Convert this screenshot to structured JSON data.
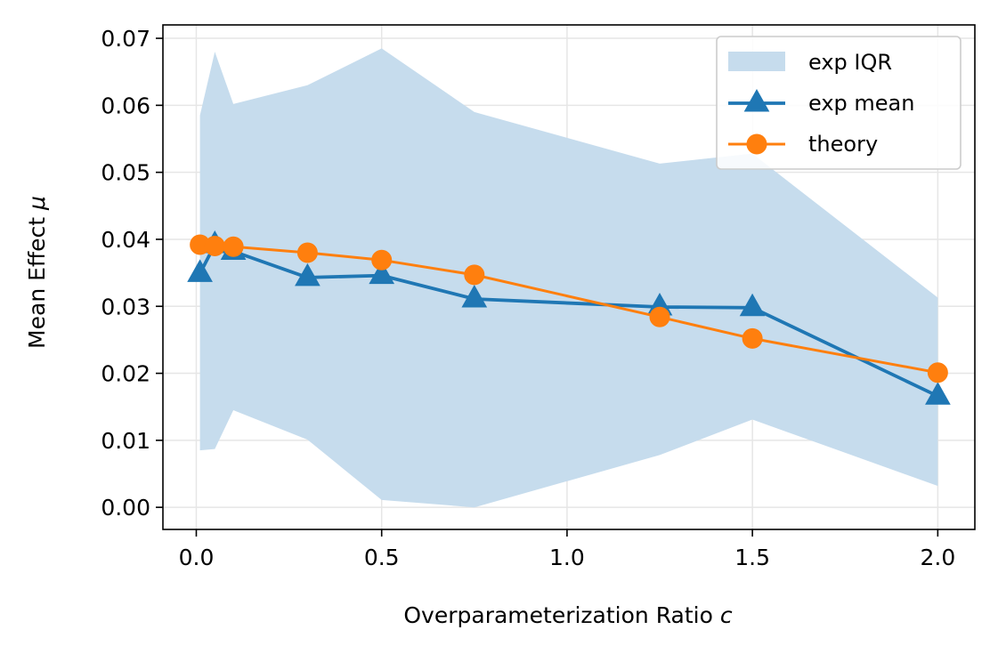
{
  "chart_data": {
    "type": "line",
    "xlabel": "Overparameterization Ratio",
    "xlabel_symbol": "c",
    "ylabel": "Mean Effect",
    "ylabel_symbol": "μ",
    "xlim": [
      -0.09,
      2.1
    ],
    "ylim": [
      -0.0033,
      0.072
    ],
    "x_ticks": [
      0.0,
      0.5,
      1.0,
      1.5,
      2.0
    ],
    "x_tick_labels": [
      "0.0",
      "0.5",
      "1.0",
      "1.5",
      "2.0"
    ],
    "y_ticks": [
      0.0,
      0.01,
      0.02,
      0.03,
      0.04,
      0.05,
      0.06,
      0.07
    ],
    "y_tick_labels": [
      "0.00",
      "0.01",
      "0.02",
      "0.03",
      "0.04",
      "0.05",
      "0.06",
      "0.07"
    ],
    "grid": true,
    "legend_position": "top-right",
    "x": [
      0.01,
      0.05,
      0.1,
      0.3,
      0.5,
      0.75,
      1.25,
      1.5,
      2.0
    ],
    "band": {
      "name": "exp IQR",
      "color": "#c6dced",
      "upper": [
        0.0585,
        0.068,
        0.0602,
        0.063,
        0.0685,
        0.059,
        0.0513,
        0.0528,
        0.0313
      ],
      "lower": [
        0.0085,
        0.0087,
        0.0145,
        0.0101,
        0.0011,
        0.0,
        0.0078,
        0.0131,
        0.0032
      ]
    },
    "series": [
      {
        "name": "exp mean",
        "color": "#1f77b4",
        "marker": "triangle",
        "values": [
          0.0349,
          0.0392,
          0.0382,
          0.0343,
          0.0346,
          0.0311,
          0.0299,
          0.0298,
          0.0166
        ]
      },
      {
        "name": "theory",
        "color": "#ff7f0e",
        "marker": "circle",
        "values": [
          0.0392,
          0.039,
          0.0389,
          0.038,
          0.0369,
          0.0347,
          0.0284,
          0.0252,
          0.0201
        ]
      }
    ]
  }
}
